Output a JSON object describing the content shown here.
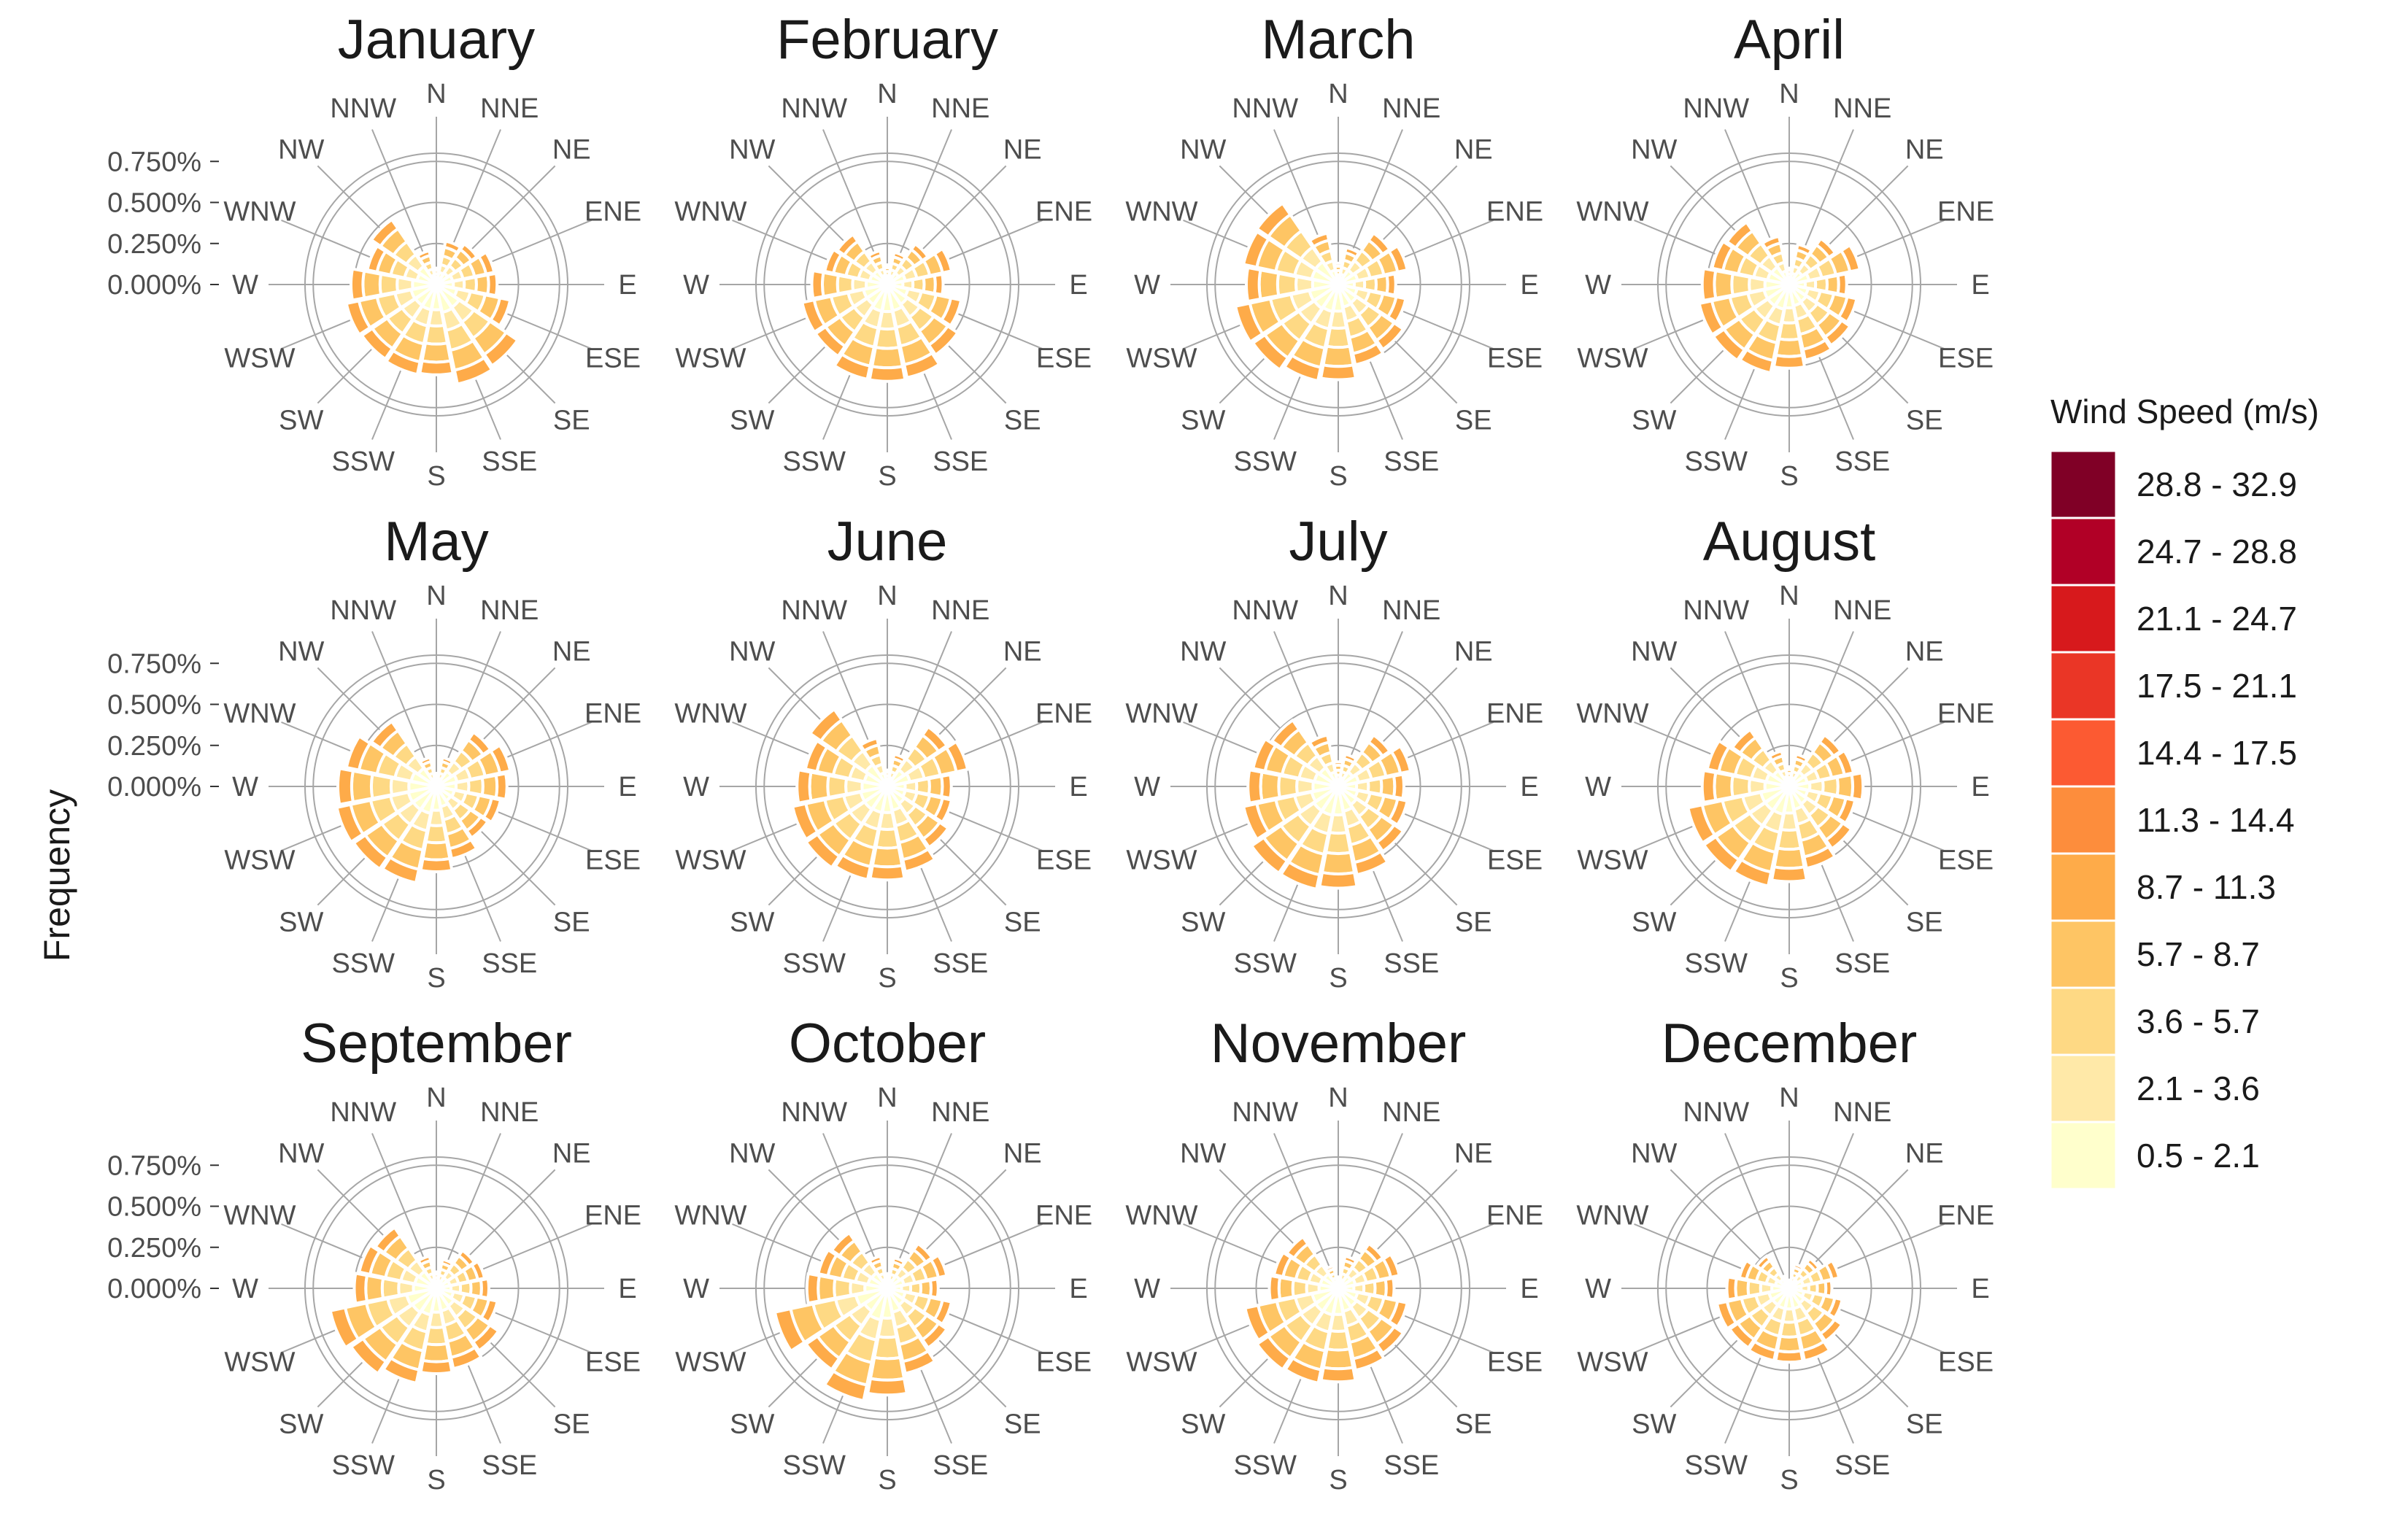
{
  "chart_data": {
    "type": "stacked-polar-bar (wind rose)",
    "ylabel": "Frequency",
    "r_ticks": [
      "0.000%",
      "0.250%",
      "0.500%",
      "0.750%"
    ],
    "r_tick_values": [
      0,
      0.25,
      0.5,
      0.75
    ],
    "r_max": 0.8,
    "directions": [
      "N",
      "NNE",
      "NE",
      "ENE",
      "E",
      "ESE",
      "SE",
      "SSE",
      "S",
      "SSW",
      "SW",
      "WSW",
      "W",
      "WNW",
      "NW",
      "NNW"
    ],
    "legend": {
      "title": "Wind Speed (m/s)",
      "items": [
        {
          "label": "28.8 - 32.9",
          "color": "#800026"
        },
        {
          "label": "24.7 - 28.8",
          "color": "#b10026"
        },
        {
          "label": "21.1 - 24.7",
          "color": "#d7191c"
        },
        {
          "label": "17.5 - 21.1",
          "color": "#ea3626"
        },
        {
          "label": "14.4 - 17.5",
          "color": "#fc5a32"
        },
        {
          "label": "11.3 - 14.4",
          "color": "#fd8d3c"
        },
        {
          "label": "8.7 - 11.3",
          "color": "#feab49"
        },
        {
          "label": "5.7 - 8.7",
          "color": "#fec564"
        },
        {
          "label": "3.6 - 5.7",
          "color": "#fed984"
        },
        {
          "label": "2.1 - 3.6",
          "color": "#ffe9a8"
        },
        {
          "label": "0.5 - 2.1",
          "color": "#ffffcc"
        }
      ]
    },
    "stack_bins_inner_to_outer": [
      "0.5 - 2.1",
      "2.1 - 3.6",
      "3.6 - 5.7",
      "5.7 - 8.7",
      "8.7 - 11.3"
    ],
    "stack_colors_inner_to_outer": [
      "#ffffcc",
      "#ffe9a8",
      "#fed984",
      "#fec564",
      "#feab49"
    ],
    "panels": [
      {
        "month": "January",
        "totals": [
          0.1,
          0.27,
          0.3,
          0.36,
          0.37,
          0.46,
          0.6,
          0.62,
          0.55,
          0.56,
          0.55,
          0.56,
          0.52,
          0.43,
          0.48,
          0.21
        ]
      },
      {
        "month": "February",
        "totals": [
          0.12,
          0.2,
          0.3,
          0.4,
          0.34,
          0.46,
          0.52,
          0.58,
          0.59,
          0.59,
          0.53,
          0.53,
          0.46,
          0.39,
          0.37,
          0.21
        ]
      },
      {
        "month": "March",
        "totals": [
          0.13,
          0.23,
          0.38,
          0.43,
          0.35,
          0.42,
          0.48,
          0.5,
          0.58,
          0.6,
          0.63,
          0.64,
          0.56,
          0.59,
          0.6,
          0.32
        ]
      },
      {
        "month": "April",
        "totals": [
          0.1,
          0.25,
          0.34,
          0.44,
          0.35,
          0.42,
          0.45,
          0.47,
          0.51,
          0.55,
          0.56,
          0.56,
          0.53,
          0.48,
          0.46,
          0.3
        ]
      },
      {
        "month": "May",
        "totals": [
          0.08,
          0.18,
          0.4,
          0.46,
          0.43,
          0.4,
          0.38,
          0.45,
          0.52,
          0.6,
          0.61,
          0.62,
          0.6,
          0.56,
          0.48,
          0.18
        ]
      },
      {
        "month": "June",
        "totals": [
          0.1,
          0.2,
          0.44,
          0.5,
          0.39,
          0.4,
          0.45,
          0.53,
          0.57,
          0.58,
          0.6,
          0.59,
          0.55,
          0.51,
          0.57,
          0.3
        ]
      },
      {
        "month": "July",
        "totals": [
          0.15,
          0.2,
          0.38,
          0.45,
          0.4,
          0.43,
          0.48,
          0.55,
          0.62,
          0.64,
          0.64,
          0.59,
          0.55,
          0.53,
          0.49,
          0.32
        ]
      },
      {
        "month": "August",
        "totals": [
          0.12,
          0.2,
          0.38,
          0.4,
          0.45,
          0.41,
          0.46,
          0.51,
          0.58,
          0.62,
          0.63,
          0.63,
          0.53,
          0.51,
          0.42,
          0.22
        ]
      },
      {
        "month": "September",
        "totals": [
          0.1,
          0.18,
          0.28,
          0.3,
          0.32,
          0.38,
          0.46,
          0.5,
          0.52,
          0.59,
          0.63,
          0.66,
          0.5,
          0.48,
          0.45,
          0.2
        ]
      },
      {
        "month": "October",
        "totals": [
          0.09,
          0.19,
          0.33,
          0.37,
          0.31,
          0.4,
          0.44,
          0.53,
          0.65,
          0.7,
          0.6,
          0.7,
          0.49,
          0.43,
          0.41,
          0.2
        ]
      },
      {
        "month": "November",
        "totals": [
          0.07,
          0.2,
          0.33,
          0.38,
          0.34,
          0.43,
          0.48,
          0.51,
          0.57,
          0.59,
          0.6,
          0.58,
          0.42,
          0.4,
          0.38,
          0.14
        ]
      },
      {
        "month": "December",
        "totals": [
          0.05,
          0.15,
          0.22,
          0.31,
          0.26,
          0.33,
          0.39,
          0.45,
          0.45,
          0.45,
          0.44,
          0.45,
          0.38,
          0.31,
          0.24,
          0.08
        ]
      }
    ]
  }
}
